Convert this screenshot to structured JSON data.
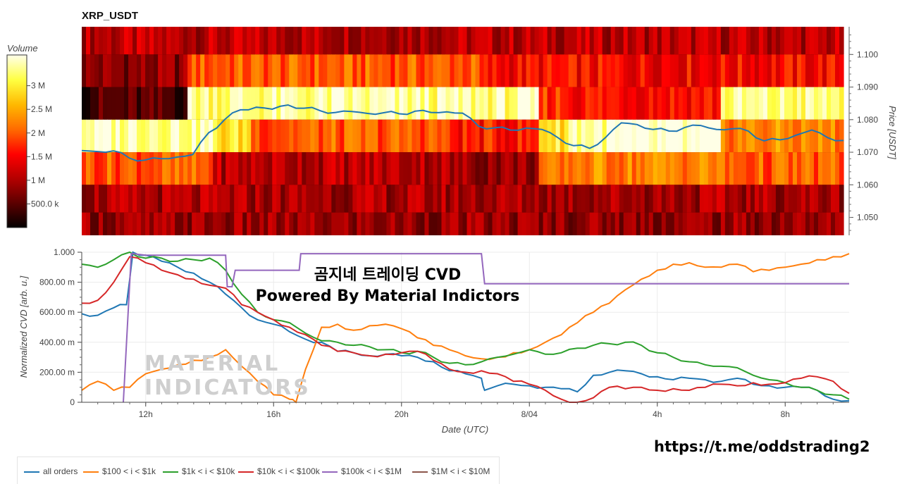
{
  "chart_data": [
    {
      "type": "heatmap",
      "title": "XRP_USDT",
      "ylabel": "Price [USDT]",
      "price_ticks": [
        "1.100",
        "1.090",
        "1.080",
        "1.070",
        "1.060",
        "1.050"
      ],
      "ylim": [
        1.0445,
        1.1085
      ],
      "price_bands": [
        1.105,
        1.095,
        1.085,
        1.075,
        1.065,
        1.055,
        1.048
      ],
      "colorbar": {
        "title": "Volume",
        "ticks": [
          "3 M",
          "2.5 M",
          "2 M",
          "1.5 M",
          "1 M",
          "500.0 k"
        ],
        "tick_values": [
          3000000,
          2500000,
          2000000,
          1500000,
          1000000,
          500000
        ],
        "range": [
          0,
          3650000
        ],
        "colors": [
          "#000000",
          "#5a0000",
          "#b30000",
          "#ff0000",
          "#ff6a00",
          "#ffb800",
          "#ffff40",
          "#ffffe6"
        ]
      },
      "band_profiles": [
        {
          "price": 1.105,
          "segments": [
            [
              0,
              1.0,
              0.3
            ]
          ]
        },
        {
          "price": 1.095,
          "segments": [
            [
              0,
              0.14,
              0.22
            ],
            [
              0.14,
              0.52,
              0.55
            ],
            [
              0.52,
              1.0,
              0.42
            ]
          ]
        },
        {
          "price": 1.085,
          "segments": [
            [
              0,
              0.14,
              0.12
            ],
            [
              0.14,
              0.6,
              0.92
            ],
            [
              0.6,
              0.64,
              0.5
            ],
            [
              0.64,
              0.84,
              0.45
            ],
            [
              0.84,
              1.0,
              0.9
            ]
          ]
        },
        {
          "price": 1.075,
          "segments": [
            [
              0,
              0.17,
              0.96
            ],
            [
              0.17,
              0.22,
              0.8
            ],
            [
              0.22,
              0.48,
              0.55
            ],
            [
              0.48,
              0.6,
              0.45
            ],
            [
              0.6,
              0.64,
              0.82
            ],
            [
              0.64,
              0.84,
              0.95
            ],
            [
              0.84,
              1.0,
              0.62
            ]
          ]
        },
        {
          "price": 1.065,
          "segments": [
            [
              0,
              0.17,
              0.55
            ],
            [
              0.17,
              0.48,
              0.3
            ],
            [
              0.48,
              0.6,
              0.25
            ],
            [
              0.6,
              0.64,
              0.55
            ],
            [
              0.64,
              0.84,
              0.62
            ],
            [
              0.84,
              1.0,
              0.55
            ]
          ]
        },
        {
          "price": 1.055,
          "segments": [
            [
              0,
              1.0,
              0.27
            ]
          ]
        },
        {
          "price": 1.048,
          "segments": [
            [
              0,
              1.0,
              0.24
            ]
          ]
        }
      ],
      "price_series": {
        "name": "",
        "color": "#1f77b4",
        "x": [
          10.0,
          10.5,
          11.0,
          11.5,
          12.0,
          12.5,
          13.0,
          13.5,
          14.0,
          14.5,
          15.0,
          15.5,
          16.0,
          16.5,
          17.0,
          17.5,
          18.0,
          18.5,
          19.0,
          19.5,
          20.0,
          20.5,
          21.0,
          21.5,
          22.0,
          22.5,
          23.0,
          23.5,
          24.0,
          24.5,
          25.0,
          25.5,
          26.0,
          26.5,
          27.0,
          27.5,
          28.0,
          28.5,
          29.0,
          29.5,
          30.0,
          30.5,
          31.0,
          31.5,
          32.0,
          32.5,
          33.0,
          33.5,
          34.0
        ],
        "y": [
          1.0705,
          1.0702,
          1.0704,
          1.0682,
          1.0676,
          1.068,
          1.0685,
          1.0693,
          1.076,
          1.08,
          1.083,
          1.0838,
          1.0832,
          1.0845,
          1.0835,
          1.0828,
          1.0822,
          1.0825,
          1.0819,
          1.0821,
          1.0818,
          1.0826,
          1.0822,
          1.0824,
          1.082,
          1.078,
          1.0775,
          1.0768,
          1.0774,
          1.077,
          1.0745,
          1.072,
          1.0712,
          1.0745,
          1.079,
          1.0785,
          1.077,
          1.0765,
          1.0776,
          1.0782,
          1.077,
          1.0772,
          1.0765,
          1.0735,
          1.0738,
          1.0752,
          1.0768,
          1.0745,
          1.0736
        ]
      }
    },
    {
      "type": "line",
      "xlabel": "Date (UTC)",
      "ylabel": "Normalized CVD [arb. u.]",
      "ylim": [
        0,
        1
      ],
      "xlim": [
        10.0,
        34.0
      ],
      "y_ticks": [
        0,
        0.2,
        0.4,
        0.6,
        0.8,
        1.0
      ],
      "y_tick_labels": [
        "0",
        "200.00 m",
        "400.00 m",
        "600.00 m",
        "800.00 m",
        "1.000"
      ],
      "x_ticks": [
        12,
        16,
        20,
        24,
        28,
        32
      ],
      "x_tick_labels": [
        "12h",
        "16h",
        "20h",
        "8/04",
        "4h",
        "8h"
      ],
      "series": [
        {
          "name": "all orders",
          "color": "#1f77b4",
          "x": [
            10.0,
            10.5,
            11.0,
            11.4,
            11.6,
            12.0,
            12.5,
            13.0,
            13.5,
            14.0,
            14.5,
            15.0,
            15.5,
            16.0,
            16.5,
            17.0,
            17.5,
            18.0,
            18.5,
            19.0,
            19.5,
            20.0,
            20.5,
            21.0,
            21.5,
            22.0,
            22.5,
            22.6,
            23.0,
            23.5,
            24.0,
            24.5,
            25.0,
            25.5,
            26.0,
            26.5,
            27.0,
            27.5,
            28.0,
            28.5,
            29.0,
            29.5,
            30.0,
            30.5,
            31.0,
            31.5,
            32.0,
            32.5,
            33.0,
            33.5,
            34.0
          ],
          "y": [
            0.59,
            0.58,
            0.63,
            0.65,
            1.0,
            0.98,
            0.94,
            0.9,
            0.86,
            0.8,
            0.72,
            0.63,
            0.55,
            0.52,
            0.47,
            0.42,
            0.4,
            0.34,
            0.33,
            0.31,
            0.32,
            0.31,
            0.3,
            0.27,
            0.21,
            0.19,
            0.16,
            0.08,
            0.11,
            0.12,
            0.11,
            0.1,
            0.09,
            0.07,
            0.18,
            0.2,
            0.21,
            0.19,
            0.17,
            0.15,
            0.16,
            0.15,
            0.14,
            0.16,
            0.12,
            0.11,
            0.1,
            0.1,
            0.08,
            0.02,
            0.01
          ]
        },
        {
          "name": "$100 < i < $1k",
          "color": "#ff7f0e",
          "x": [
            10.0,
            10.5,
            11.0,
            11.5,
            12.0,
            12.5,
            13.0,
            13.5,
            14.0,
            14.5,
            15.0,
            15.5,
            16.0,
            16.5,
            16.7,
            17.0,
            17.5,
            18.0,
            18.5,
            19.0,
            19.5,
            20.0,
            20.5,
            21.0,
            21.5,
            22.0,
            22.5,
            23.0,
            23.5,
            24.0,
            24.5,
            25.0,
            25.5,
            26.0,
            26.5,
            27.0,
            27.5,
            28.0,
            28.5,
            29.0,
            29.5,
            30.0,
            30.5,
            31.0,
            31.5,
            32.0,
            32.5,
            33.0,
            33.5,
            34.0
          ],
          "y": [
            0.08,
            0.14,
            0.08,
            0.1,
            0.19,
            0.22,
            0.25,
            0.28,
            0.3,
            0.35,
            0.24,
            0.14,
            0.05,
            0.02,
            0.0,
            0.22,
            0.5,
            0.52,
            0.48,
            0.51,
            0.52,
            0.49,
            0.43,
            0.38,
            0.35,
            0.31,
            0.29,
            0.3,
            0.33,
            0.35,
            0.4,
            0.45,
            0.53,
            0.6,
            0.66,
            0.75,
            0.82,
            0.88,
            0.92,
            0.93,
            0.9,
            0.9,
            0.92,
            0.87,
            0.88,
            0.9,
            0.92,
            0.95,
            0.97,
            0.99
          ]
        },
        {
          "name": "$1k < i < $10k",
          "color": "#2ca02c",
          "x": [
            10.0,
            10.5,
            11.0,
            11.5,
            12.0,
            12.5,
            13.0,
            13.5,
            14.0,
            14.5,
            15.0,
            15.5,
            16.0,
            16.5,
            17.0,
            17.5,
            18.0,
            18.5,
            19.0,
            19.5,
            20.0,
            20.5,
            21.0,
            21.5,
            22.0,
            22.5,
            23.0,
            23.5,
            24.0,
            24.5,
            25.0,
            25.5,
            26.0,
            26.5,
            27.0,
            27.5,
            28.0,
            28.5,
            29.0,
            29.5,
            30.0,
            30.5,
            31.0,
            31.5,
            32.0,
            32.5,
            33.0,
            33.5,
            34.0
          ],
          "y": [
            0.92,
            0.9,
            0.95,
            1.0,
            0.96,
            0.96,
            0.94,
            0.95,
            0.96,
            0.88,
            0.72,
            0.6,
            0.55,
            0.53,
            0.46,
            0.41,
            0.4,
            0.38,
            0.37,
            0.35,
            0.33,
            0.34,
            0.3,
            0.26,
            0.25,
            0.27,
            0.3,
            0.32,
            0.35,
            0.32,
            0.33,
            0.36,
            0.38,
            0.39,
            0.4,
            0.38,
            0.33,
            0.3,
            0.27,
            0.25,
            0.24,
            0.23,
            0.18,
            0.15,
            0.13,
            0.1,
            0.08,
            0.05,
            0.02
          ]
        },
        {
          "name": "$10k < i < $100k",
          "color": "#d62728",
          "x": [
            10.0,
            10.5,
            11.0,
            11.5,
            12.0,
            12.5,
            13.0,
            13.5,
            14.0,
            14.5,
            15.0,
            15.5,
            16.0,
            16.5,
            17.0,
            17.5,
            18.0,
            18.5,
            19.0,
            19.5,
            20.0,
            20.5,
            21.0,
            21.5,
            22.0,
            22.5,
            23.0,
            23.5,
            24.0,
            24.5,
            25.0,
            25.5,
            26.0,
            26.5,
            27.0,
            27.5,
            28.0,
            28.5,
            29.0,
            29.5,
            30.0,
            30.5,
            31.0,
            31.5,
            32.0,
            32.5,
            33.0,
            33.5,
            34.0
          ],
          "y": [
            0.66,
            0.68,
            0.8,
            0.97,
            0.93,
            0.88,
            0.85,
            0.82,
            0.78,
            0.76,
            0.65,
            0.6,
            0.55,
            0.5,
            0.45,
            0.38,
            0.34,
            0.33,
            0.31,
            0.32,
            0.33,
            0.34,
            0.28,
            0.22,
            0.2,
            0.21,
            0.19,
            0.14,
            0.12,
            0.08,
            0.02,
            0.0,
            0.03,
            0.1,
            0.09,
            0.1,
            0.08,
            0.09,
            0.08,
            0.1,
            0.12,
            0.11,
            0.13,
            0.12,
            0.13,
            0.16,
            0.17,
            0.14,
            0.06
          ]
        },
        {
          "name": "$100k < i < $1M",
          "color": "#9467bd",
          "x": [
            11.3,
            11.55,
            11.6,
            12.0,
            14.5,
            14.55,
            14.7,
            14.8,
            16.0,
            16.8,
            16.85,
            17.5,
            22.0,
            22.5,
            22.6,
            24.0,
            28.0,
            34.0
          ],
          "y": [
            0.0,
            0.99,
            0.99,
            0.98,
            0.98,
            0.77,
            0.77,
            0.88,
            0.88,
            0.88,
            0.99,
            0.99,
            0.99,
            0.99,
            0.79,
            0.79,
            0.79,
            0.79
          ]
        },
        {
          "name": "$1M < i < $10M",
          "color": "#8c564b",
          "x": [],
          "y": []
        }
      ]
    }
  ],
  "overlay": {
    "title_line1": "곰지네 트레이딩 CVD",
    "title_line2": "Powered By Material Indictors",
    "watermark_line1": "MATERIAL",
    "watermark_line2": "INDICATORS",
    "link": "https://t.me/oddstrading2"
  }
}
